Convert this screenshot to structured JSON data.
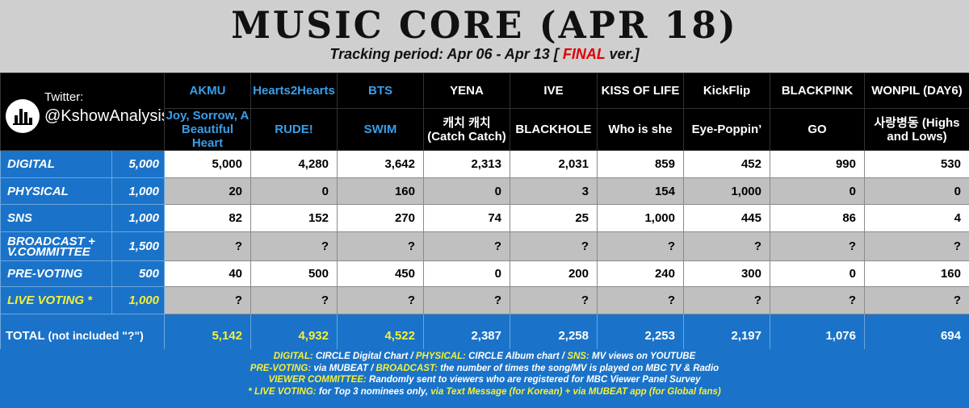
{
  "title": "MUSIC CORE (APR 18)",
  "tracking_prefix": "Tracking period: Apr 06 - Apr 13 [",
  "final_word": "FINAL",
  "tracking_suffix": " ver.]",
  "twitter_label": "Twitter:",
  "twitter_handle": "@KshowAnalysis",
  "artists": [
    {
      "name": "AKMU",
      "song": "Joy, Sorrow, A Beautiful Heart",
      "blue": true
    },
    {
      "name": "Hearts2Hearts",
      "song": "RUDE!",
      "blue": true
    },
    {
      "name": "BTS",
      "song": "SWIM",
      "blue": true
    },
    {
      "name": "YENA",
      "song": "캐치 캐치 (Catch Catch)",
      "blue": false
    },
    {
      "name": "IVE",
      "song": "BLACKHOLE",
      "blue": false
    },
    {
      "name": "KISS OF LIFE",
      "song": "Who is she",
      "blue": false
    },
    {
      "name": "KickFlip",
      "song": "Eye-Poppin’",
      "blue": false
    },
    {
      "name": "BLACKPINK",
      "song": "GO",
      "blue": false
    },
    {
      "name": "WONPIL (DAY6)",
      "song": "사랑병동 (Highs and Lows)",
      "blue": false
    }
  ],
  "rows": [
    {
      "category": "DIGITAL",
      "weight": "5,000",
      "values": [
        "5,000",
        "4,280",
        "3,642",
        "2,313",
        "2,031",
        "859",
        "452",
        "990",
        "530"
      ]
    },
    {
      "category": "PHYSICAL",
      "weight": "1,000",
      "values": [
        "20",
        "0",
        "160",
        "0",
        "3",
        "154",
        "1,000",
        "0",
        "0"
      ]
    },
    {
      "category": "SNS",
      "weight": "1,000",
      "values": [
        "82",
        "152",
        "270",
        "74",
        "25",
        "1,000",
        "445",
        "86",
        "4"
      ]
    },
    {
      "category": "BROADCAST + V.COMMITTEE",
      "weight": "1,500",
      "values": [
        "?",
        "?",
        "?",
        "?",
        "?",
        "?",
        "?",
        "?",
        "?"
      ]
    },
    {
      "category": "PRE-VOTING",
      "weight": "500",
      "values": [
        "40",
        "500",
        "450",
        "0",
        "200",
        "240",
        "300",
        "0",
        "160"
      ]
    },
    {
      "category": "LIVE VOTING *",
      "weight": "1,000",
      "values": [
        "?",
        "?",
        "?",
        "?",
        "?",
        "?",
        "?",
        "?",
        "?"
      ]
    }
  ],
  "total": {
    "label": "TOTAL",
    "note": "(not included \"?\")",
    "values": [
      "5,142",
      "4,932",
      "4,522",
      "2,387",
      "2,258",
      "2,253",
      "2,197",
      "1,076",
      "694"
    ]
  },
  "legend": {
    "l1_a": "DIGITAL:",
    "l1_b": " CIRCLE Digital Chart / ",
    "l1_c": "PHYSICAL:",
    "l1_d": " CIRCLE Album chart / ",
    "l1_e": "SNS:",
    "l1_f": " MV views on YOUTUBE",
    "l2_a": "PRE-VOTING:",
    "l2_b": " via MUBEAT / ",
    "l2_c": "BROADCAST:",
    "l2_d": " the number of times the song/MV is played on MBC TV & Radio",
    "l3_a": "VIEWER COMMITTEE:",
    "l3_b": " Randomly sent to viewers who are registered for MBC Viewer Panel Survey",
    "l4_a": "* LIVE VOTING:",
    "l4_b": " for Top 3 nominees only, ",
    "l4_c": " via Text Message (for Korean) + via MUBEAT app (for Global fans)"
  },
  "colors": {
    "header_bg": "#000000",
    "blue": "#1a73c9",
    "highlight": "#f5ef3a",
    "final": "#e00000",
    "artist_blue": "#3a9ee8"
  }
}
